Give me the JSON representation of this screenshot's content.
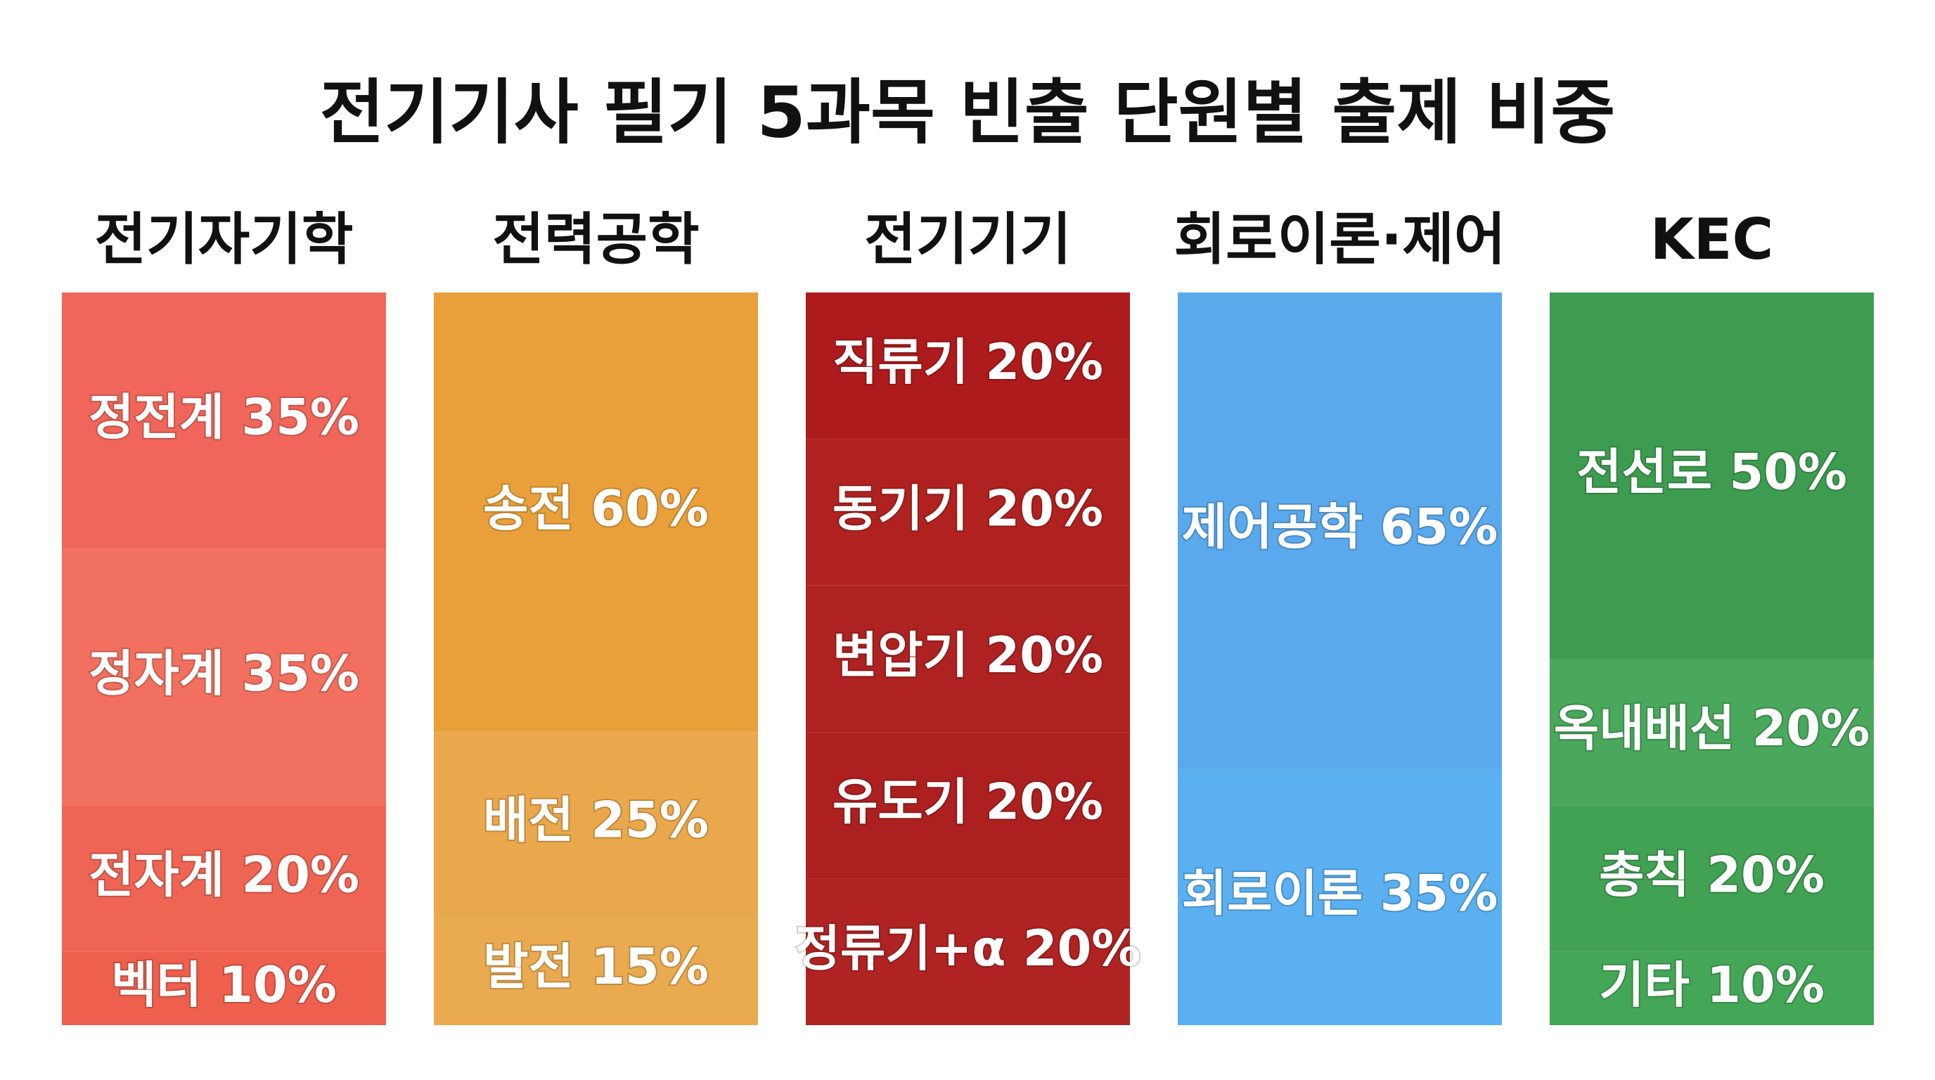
{
  "chart_data": {
    "type": "stacked-column",
    "title": "전기기사 필기 5과목 빈출 단원별 출제 비중",
    "columns": [
      {
        "name": "전기자기학",
        "values": [
          35,
          35,
          20,
          10
        ],
        "value_labels": [
          "정전계 35%",
          "정자계 35%",
          "전자계 20%",
          "벡터 10%"
        ],
        "colors": [
          "#f1665a",
          "#f2705f",
          "#ef6554",
          "#ee5f4e"
        ]
      },
      {
        "name": "전력공학",
        "values": [
          60,
          25,
          15
        ],
        "value_labels": [
          "송전 60%",
          "배전 25%",
          "발전 15%"
        ],
        "colors": [
          "#e9a03a",
          "#eaa84c",
          "#e9aa50"
        ]
      },
      {
        "name": "전기기기",
        "values": [
          20,
          20,
          20,
          20,
          20
        ],
        "value_labels": [
          "직류기 20%",
          "동기기 20%",
          "변압기 20%",
          "유도기 20%",
          "정류기+α 20%"
        ],
        "colors": [
          "#ad1b1d",
          "#b0221f",
          "#ae2221",
          "#ad2020",
          "#b02323"
        ]
      },
      {
        "name": "회로이론·제어",
        "values": [
          65,
          35
        ],
        "value_labels": [
          "제어공학 65%",
          "회로이론 35%"
        ],
        "colors": [
          "#5aa9ec",
          "#5ab0f0"
        ]
      },
      {
        "name": "KEC",
        "values": [
          50,
          20,
          20,
          10
        ],
        "value_labels": [
          "전선로 50%",
          "옥내배선 20%",
          "총칙 20%",
          "기타 10%"
        ],
        "colors": [
          "#3d9c50",
          "#49a85b",
          "#41a254",
          "#44a757"
        ]
      }
    ]
  }
}
